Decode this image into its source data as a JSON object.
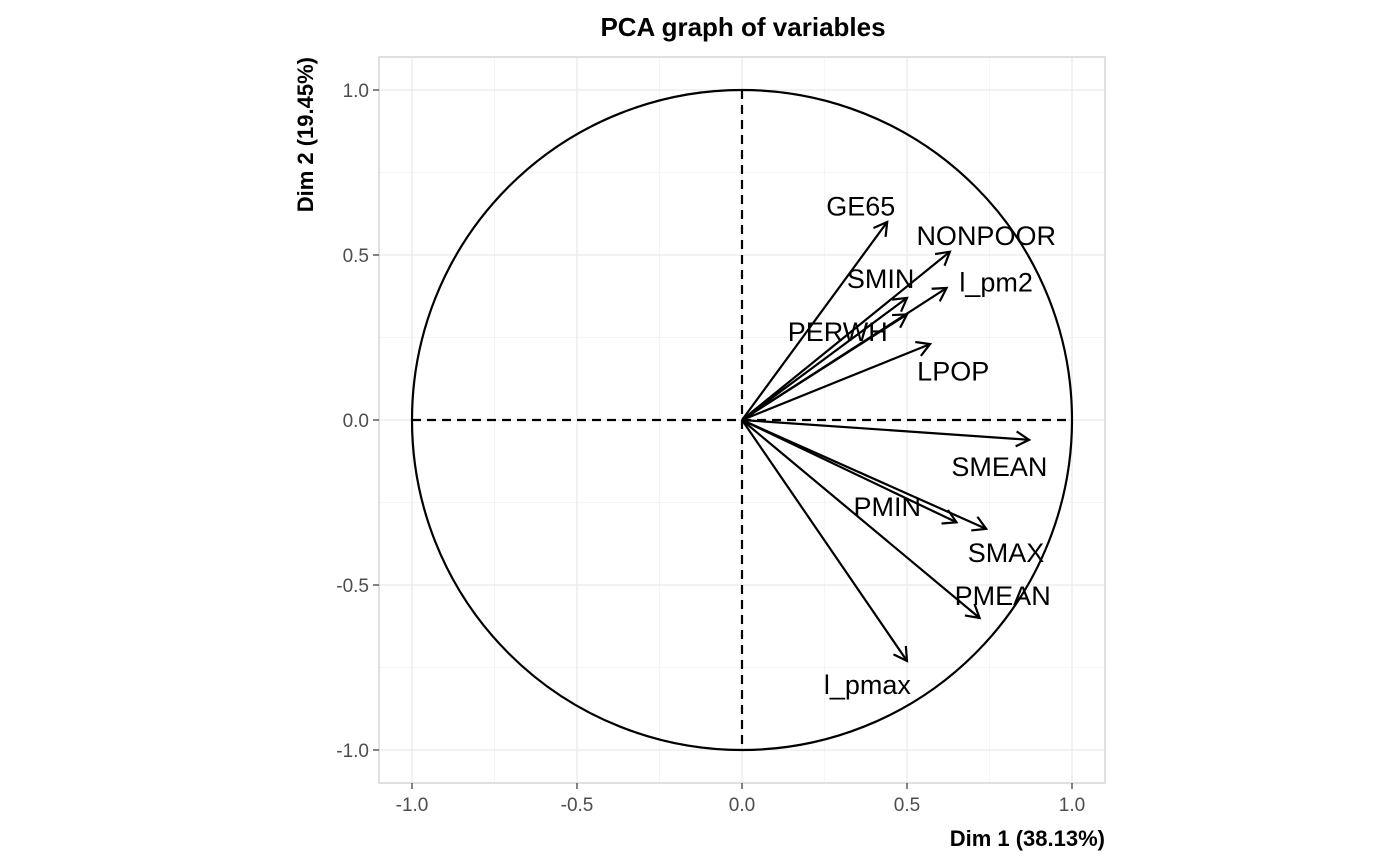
{
  "chart_data": {
    "type": "scatter",
    "title": "PCA graph of variables",
    "xlabel": "Dim 1 (38.13%)",
    "ylabel": "Dim 2 (19.45%)",
    "xlim": [
      -1.1,
      1.1
    ],
    "ylim": [
      -1.1,
      1.1
    ],
    "x_ticks": [
      -1.0,
      -0.5,
      0.0,
      0.5,
      1.0
    ],
    "y_ticks": [
      -1.0,
      -0.5,
      0.0,
      0.5,
      1.0
    ],
    "x_tick_labels": [
      "-1.0",
      "-0.5",
      "0.0",
      "0.5",
      "1.0"
    ],
    "y_tick_labels": [
      "-1.0",
      "-0.5",
      "0.0",
      "0.5",
      "1.0"
    ],
    "grid": true,
    "unit_circle": true,
    "variables": [
      {
        "name": "GE65",
        "x": 0.44,
        "y": 0.6,
        "label_x": 0.36,
        "label_y": 0.65
      },
      {
        "name": "NONPOOR",
        "x": 0.63,
        "y": 0.51,
        "label_x": 0.74,
        "label_y": 0.56
      },
      {
        "name": "SMIN",
        "x": 0.5,
        "y": 0.37,
        "label_x": 0.42,
        "label_y": 0.43
      },
      {
        "name": "l_pm2",
        "x": 0.62,
        "y": 0.4,
        "label_x": 0.77,
        "label_y": 0.42
      },
      {
        "name": "PERWH",
        "x": 0.5,
        "y": 0.32,
        "label_x": 0.29,
        "label_y": 0.27
      },
      {
        "name": "LPOP",
        "x": 0.57,
        "y": 0.23,
        "label_x": 0.64,
        "label_y": 0.15
      },
      {
        "name": "SMEAN",
        "x": 0.87,
        "y": -0.06,
        "label_x": 0.78,
        "label_y": -0.14
      },
      {
        "name": "PMIN",
        "x": 0.65,
        "y": -0.31,
        "label_x": 0.44,
        "label_y": -0.26
      },
      {
        "name": "SMAX",
        "x": 0.74,
        "y": -0.33,
        "label_x": 0.8,
        "label_y": -0.4
      },
      {
        "name": "PMEAN",
        "x": 0.72,
        "y": -0.6,
        "label_x": 0.79,
        "label_y": -0.53
      },
      {
        "name": "l_pmax",
        "x": 0.5,
        "y": -0.73,
        "label_x": 0.38,
        "label_y": -0.8
      }
    ]
  }
}
